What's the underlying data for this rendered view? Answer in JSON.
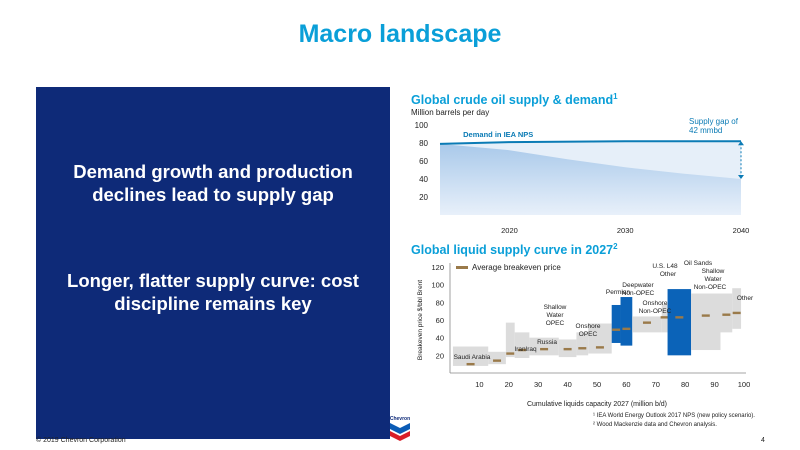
{
  "page_title": "Macro landscape",
  "left_panel": {
    "statement_1": [
      "Demand growth and production",
      "declines lead to supply gap"
    ],
    "statement_2": [
      "Longer, flatter supply curve: cost",
      "discipline remains key"
    ]
  },
  "colors": {
    "accent": "#0a9fd8",
    "navy": "#0e2a78",
    "bar_blue": "#0b63b8",
    "bar_gray": "#dcdcdc",
    "breakeven_marker": "#9a7a4a"
  },
  "footer": {
    "copyright": "© 2019 Chevron Corporation",
    "page_number": "4",
    "logo": "chevron-logo"
  },
  "footnotes": [
    "¹ IEA World Energy Outlook 2017 NPS (new policy scenario).",
    "² Wood Mackenzie data and Chevron analysis."
  ],
  "chart_data": [
    {
      "type": "area",
      "title": "Global crude oil supply & demand",
      "title_footnote": "1",
      "ylabel": "Million barrels per day",
      "xlim": [
        2014,
        2040
      ],
      "ylim": [
        0,
        100
      ],
      "y_ticks": [
        20,
        40,
        60,
        80,
        100
      ],
      "x_ticks": [
        2020,
        2030,
        2040
      ],
      "series": [
        {
          "name": "Demand in IEA NPS",
          "x": [
            2014,
            2020,
            2030,
            2040
          ],
          "values": [
            79,
            81,
            82,
            82
          ]
        },
        {
          "x": [
            2014,
            2020,
            2025,
            2030,
            2035,
            2040
          ],
          "values": [
            79,
            72,
            62,
            53,
            46,
            40
          ]
        }
      ],
      "annotations": [
        {
          "text": "Supply gap of 42 mmbd",
          "x": 2040,
          "y_from": 40,
          "y_to": 82
        }
      ]
    },
    {
      "type": "bar",
      "title": "Global liquid supply curve in 2027",
      "title_footnote": "2",
      "xlabel": "Cumulative liquids capacity 2027 (million b/d)",
      "ylabel": "Breakeven price $/bbl Brent",
      "xlim": [
        0,
        100
      ],
      "ylim": [
        0,
        120
      ],
      "x_ticks": [
        10,
        20,
        30,
        40,
        50,
        60,
        70,
        80,
        90,
        100
      ],
      "y_ticks": [
        20,
        40,
        60,
        80,
        100,
        120
      ],
      "legend": "Average breakeven price",
      "segments": [
        {
          "label": "Saudi Arabia",
          "x0": 1,
          "x1": 13,
          "low": 8,
          "high": 30,
          "avg": 10,
          "color": "gray"
        },
        {
          "label": "",
          "x0": 13,
          "x1": 19,
          "low": 10,
          "high": 24,
          "avg": 14,
          "color": "gray"
        },
        {
          "label": "Iran",
          "x0": 19,
          "x1": 22,
          "low": 18,
          "high": 57,
          "avg": 22,
          "color": "gray"
        },
        {
          "label": "Iraq",
          "x0": 22,
          "x1": 27,
          "low": 17,
          "high": 46,
          "avg": 26,
          "color": "gray"
        },
        {
          "label": "Russia",
          "x0": 27,
          "x1": 37,
          "low": 20,
          "high": 40,
          "avg": 27,
          "color": "gray"
        },
        {
          "label": "",
          "x0": 37,
          "x1": 43,
          "low": 18,
          "high": 38,
          "avg": 27,
          "color": "gray"
        },
        {
          "label": "Shallow Water OPEC",
          "x0": 43,
          "x1": 47,
          "low": 20,
          "high": 46,
          "avg": 28,
          "color": "gray"
        },
        {
          "label": "Onshore OPEC",
          "x0": 47,
          "x1": 55,
          "low": 22,
          "high": 56,
          "avg": 29,
          "color": "gray"
        },
        {
          "label": "Permian",
          "x0": 55,
          "x1": 58,
          "low": 34,
          "high": 77,
          "avg": 49,
          "color": "blue"
        },
        {
          "label": "Deepwater Non-OPEC",
          "x0": 58,
          "x1": 62,
          "low": 31,
          "high": 86,
          "avg": 50,
          "color": "blue"
        },
        {
          "label": "Onshore Non-OPEC",
          "x0": 62,
          "x1": 72,
          "low": 46,
          "high": 64,
          "avg": 57,
          "color": "gray"
        },
        {
          "label": "U.S. L48 Other",
          "x0": 72,
          "x1": 74,
          "low": 46,
          "high": 78,
          "avg": 63,
          "color": "gray"
        },
        {
          "label": "Oil Sands",
          "x0": 74,
          "x1": 82,
          "low": 20,
          "high": 95,
          "avg": 63,
          "color": "blue"
        },
        {
          "label": "Shallow Water Non-OPEC",
          "x0": 82,
          "x1": 92,
          "low": 26,
          "high": 90,
          "avg": 65,
          "color": "gray"
        },
        {
          "label": "",
          "x0": 92,
          "x1": 96,
          "low": 46,
          "high": 90,
          "avg": 66,
          "color": "gray"
        },
        {
          "label": "Other",
          "x0": 96,
          "x1": 99,
          "low": 50,
          "high": 96,
          "avg": 68,
          "color": "gray"
        }
      ]
    }
  ]
}
